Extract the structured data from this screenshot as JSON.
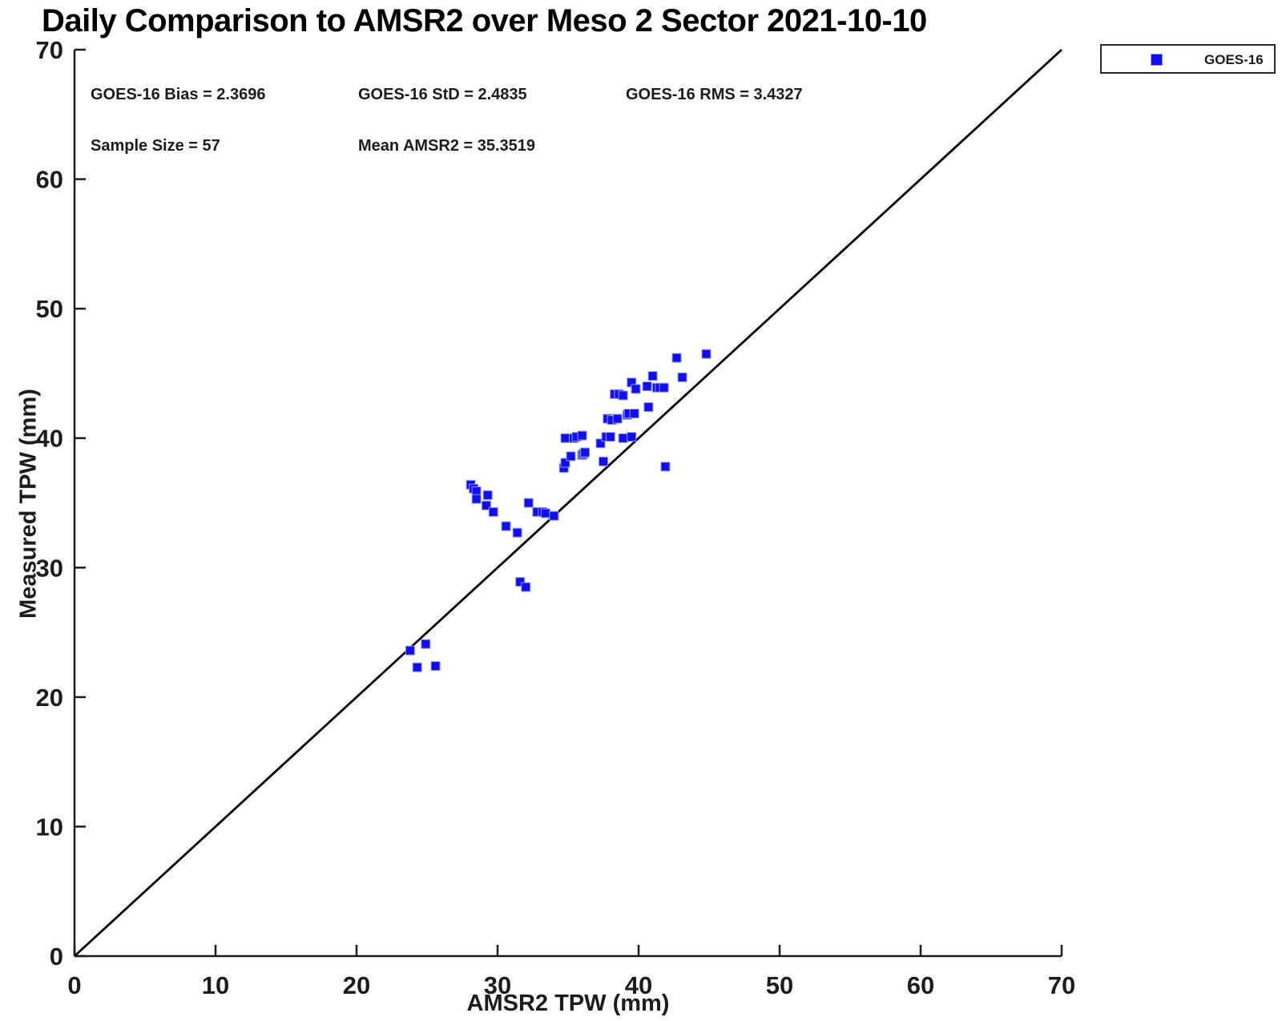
{
  "title": "Daily Comparison to AMSR2 over Meso 2 Sector 2021-10-10",
  "stats": {
    "bias": "GOES-16 Bias = 2.3696",
    "std": "GOES-16 StD = 2.4835",
    "rms": "GOES-16 RMS = 3.4327",
    "sample_size": "Sample Size = 57",
    "mean_amsr2": "Mean AMSR2 = 35.3519"
  },
  "legend": {
    "position": "top-right-outside",
    "items": [
      {
        "label": "GOES-16",
        "marker": "filled-square",
        "color": "#0f0ff0"
      }
    ]
  },
  "colors": {
    "marker_blue": "#0f0ff0",
    "marker_rim": "#9a9af0",
    "axis": "#1c1c1c",
    "reference_line": "#000000",
    "text": "#1c1c1c",
    "background": "#ffffff"
  },
  "chart_data": {
    "type": "scatter",
    "title": "Daily Comparison to AMSR2 over Meso 2 Sector 2021-10-10",
    "xlabel": "AMSR2 TPW (mm)",
    "ylabel": "Measured TPW (mm)",
    "xlim": [
      0,
      70
    ],
    "ylim": [
      0,
      70
    ],
    "x_ticks": [
      0,
      10,
      20,
      30,
      40,
      50,
      60,
      70
    ],
    "y_ticks": [
      0,
      10,
      20,
      30,
      40,
      50,
      60,
      70
    ],
    "grid": false,
    "legend_position": "top-right-outside",
    "reference_line": {
      "type": "identity",
      "from": [
        0,
        0
      ],
      "to": [
        70,
        70
      ]
    },
    "series": [
      {
        "name": "GOES-16",
        "marker": "filled-square",
        "color": "#0f0ff0",
        "points": [
          [
            23.8,
            23.6
          ],
          [
            24.9,
            24.1
          ],
          [
            24.3,
            22.3
          ],
          [
            25.6,
            22.4
          ],
          [
            31.6,
            28.9
          ],
          [
            32.0,
            28.5
          ],
          [
            28.1,
            36.4
          ],
          [
            28.3,
            36.1
          ],
          [
            28.5,
            35.9
          ],
          [
            29.3,
            35.6
          ],
          [
            28.5,
            35.3
          ],
          [
            29.2,
            34.8
          ],
          [
            29.7,
            34.3
          ],
          [
            30.6,
            33.2
          ],
          [
            31.4,
            32.7
          ],
          [
            32.2,
            35.0
          ],
          [
            32.8,
            34.3
          ],
          [
            33.2,
            34.3
          ],
          [
            33.4,
            34.2
          ],
          [
            34.0,
            34.0
          ],
          [
            34.7,
            37.7
          ],
          [
            34.8,
            38.1
          ],
          [
            35.2,
            38.6
          ],
          [
            36.0,
            38.7
          ],
          [
            36.1,
            38.8
          ],
          [
            36.2,
            38.9
          ],
          [
            37.5,
            38.2
          ],
          [
            34.8,
            40.0
          ],
          [
            35.4,
            40.0
          ],
          [
            35.6,
            40.1
          ],
          [
            36.0,
            40.2
          ],
          [
            37.3,
            39.6
          ],
          [
            37.7,
            40.1
          ],
          [
            38.0,
            40.1
          ],
          [
            38.9,
            40.0
          ],
          [
            39.5,
            40.1
          ],
          [
            37.8,
            41.5
          ],
          [
            38.1,
            41.4
          ],
          [
            38.5,
            41.5
          ],
          [
            39.2,
            41.8
          ],
          [
            39.3,
            41.9
          ],
          [
            39.7,
            41.9
          ],
          [
            40.7,
            42.4
          ],
          [
            38.3,
            43.4
          ],
          [
            38.6,
            43.4
          ],
          [
            38.9,
            43.3
          ],
          [
            39.5,
            44.3
          ],
          [
            39.8,
            43.8
          ],
          [
            40.6,
            44.0
          ],
          [
            41.3,
            43.9
          ],
          [
            41.5,
            43.9
          ],
          [
            41.8,
            43.9
          ],
          [
            41.0,
            44.8
          ],
          [
            43.1,
            44.7
          ],
          [
            42.7,
            46.2
          ],
          [
            44.8,
            46.5
          ],
          [
            41.9,
            37.8
          ]
        ]
      }
    ]
  }
}
